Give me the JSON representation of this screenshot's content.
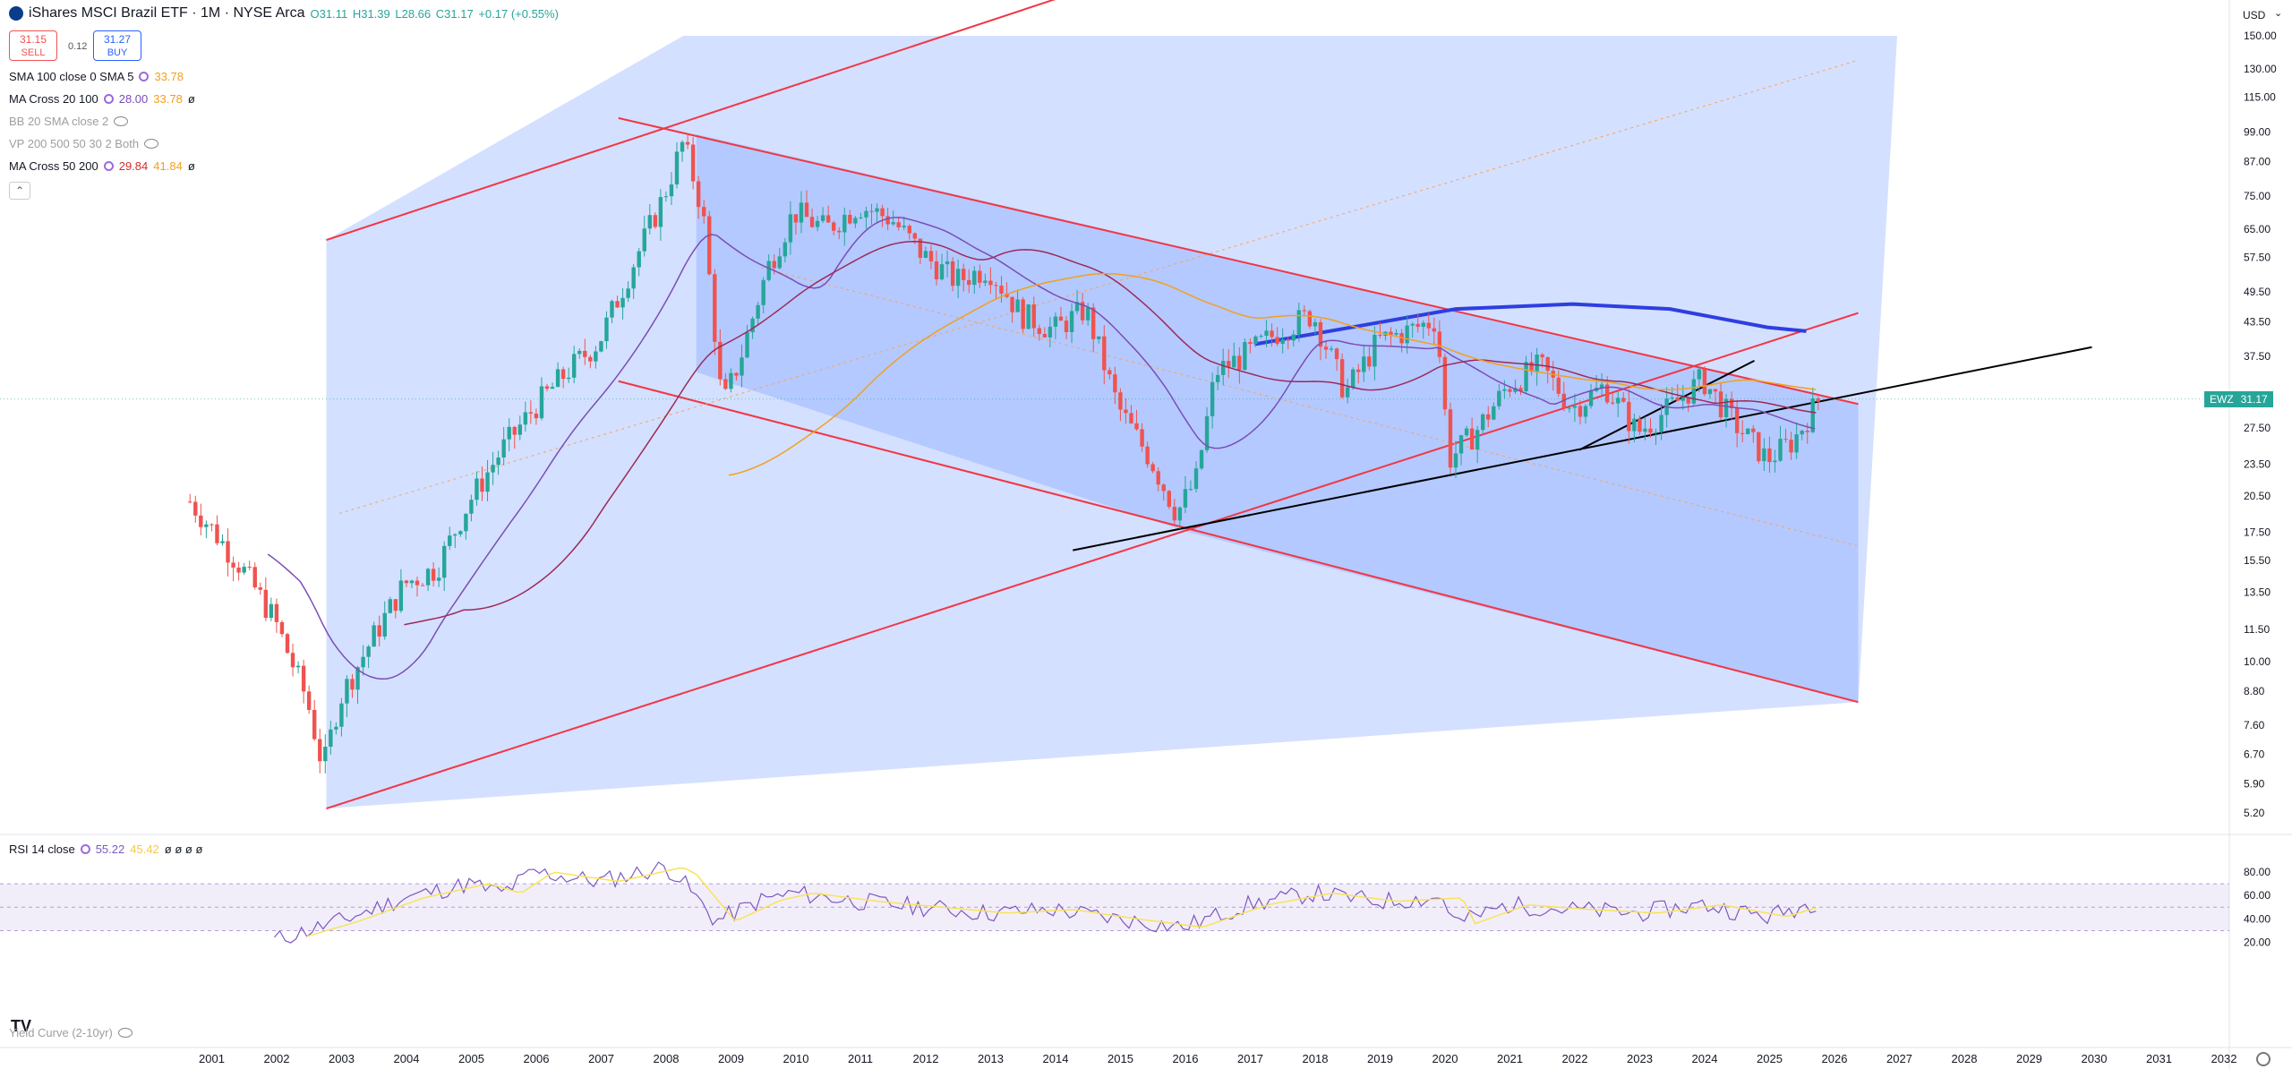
{
  "header": {
    "title": "iShares MSCI Brazil ETF · 1M · NYSE Arca",
    "open": "O31.11",
    "high": "H31.39",
    "low": "L28.66",
    "close": "C31.17",
    "change": "+0.17 (+0.55%)"
  },
  "quote": {
    "sell_price": "31.15",
    "sell_label": "SELL",
    "spread": "0.12",
    "buy_price": "31.27",
    "buy_label": "BUY"
  },
  "indicators": [
    {
      "label": "SMA 100 close 0 SMA 5",
      "v1": "33.78",
      "v2": "",
      "c1": "#f0a020"
    },
    {
      "label": "MA Cross 20 100",
      "v1": "28.00",
      "v2": "33.78",
      "c1": "#7b4db5",
      "extra": "ø"
    },
    {
      "label": "BB 20 SMA close 2",
      "v1": "",
      "v2": "",
      "muted": true
    },
    {
      "label": "VP 200 500 50 30 2 Both",
      "v1": "",
      "v2": "",
      "muted": true
    },
    {
      "label": "MA Cross 50 200",
      "v1": "29.84",
      "v2": "41.84",
      "c1": "#d32f2f",
      "extra": "ø"
    }
  ],
  "rsi_legend": {
    "label": "RSI 14 close",
    "v1": "55.22",
    "v2": "45.42",
    "extra": "ø ø ø ø"
  },
  "yield_label": "Yield Curve (2-10yr)",
  "currency": "USD",
  "ticker_tag": {
    "symbol": "EWZ",
    "price": "31.17"
  },
  "colors": {
    "up": "#26a69a",
    "down": "#ef5350",
    "channel": "#2962ff",
    "channel_line": "#f23645",
    "sma": "#f0a020",
    "ma20": "#7b4db5",
    "ma50": "#9c2a5a",
    "ma200": "#2e3ee0",
    "rsi": "#7e57c2",
    "rsi_ma": "#f7e35a"
  },
  "chart_data": {
    "type": "line",
    "title": "iShares MSCI Brazil ETF · 1M · NYSE Arca",
    "y_scale": "log",
    "price_ticks": [
      "150.00",
      "130.00",
      "115.00",
      "99.00",
      "87.00",
      "75.00",
      "65.00",
      "57.50",
      "49.50",
      "43.50",
      "37.50",
      "31.17",
      "27.50",
      "23.50",
      "20.50",
      "17.50",
      "15.50",
      "13.50",
      "11.50",
      "10.00",
      "8.80",
      "7.60",
      "6.70",
      "5.90",
      "5.20"
    ],
    "rsi_ticks": [
      "80.00",
      "60.00",
      "40.00",
      "20.00"
    ],
    "x_ticks": [
      "2001",
      "2002",
      "2003",
      "2004",
      "2005",
      "2006",
      "2007",
      "2008",
      "2009",
      "2010",
      "2011",
      "2012",
      "2013",
      "2014",
      "2015",
      "2016",
      "2017",
      "2018",
      "2019",
      "2020",
      "2021",
      "2022",
      "2023",
      "2024",
      "2025",
      "2026",
      "2027",
      "2028",
      "2029",
      "2030",
      "2031",
      "2032"
    ],
    "series": [
      {
        "name": "EWZ",
        "x": [
          2000.7,
          2001.0,
          2001.5,
          2002.0,
          2002.5,
          2002.75,
          2003.0,
          2003.5,
          2004.0,
          2004.5,
          2005.0,
          2005.5,
          2006.0,
          2006.5,
          2007.0,
          2007.5,
          2008.0,
          2008.3,
          2008.6,
          2008.9,
          2009.2,
          2009.6,
          2010.0,
          2010.5,
          2011.0,
          2011.5,
          2012.0,
          2012.5,
          2013.0,
          2013.5,
          2014.0,
          2014.5,
          2015.0,
          2015.5,
          2015.9,
          2016.2,
          2016.5,
          2017.0,
          2017.5,
          2018.0,
          2018.5,
          2019.0,
          2019.5,
          2019.9,
          2020.1,
          2020.5,
          2021.0,
          2021.5,
          2022.0,
          2022.5,
          2023.0,
          2023.5,
          2024.0,
          2024.5,
          2025.0,
          2025.4,
          2025.8
        ],
        "values": [
          20,
          18,
          15,
          12,
          8.5,
          6.3,
          8.5,
          11,
          14,
          15,
          20,
          25,
          30,
          35,
          40,
          55,
          75,
          95,
          70,
          30,
          38,
          55,
          70,
          65,
          72,
          68,
          58,
          52,
          55,
          45,
          42,
          46,
          30,
          24,
          19,
          22,
          35,
          38,
          42,
          45,
          32,
          40,
          42,
          44,
          24,
          27,
          33,
          36,
          30,
          33,
          27,
          30,
          34,
          28,
          24,
          26,
          31.17
        ]
      },
      {
        "name": "RSI 14",
        "x": [
          2002.0,
          2003.0,
          2004.0,
          2005.0,
          2005.5,
          2006.0,
          2007.0,
          2008.0,
          2008.2,
          2008.8,
          2009.5,
          2010.0,
          2011.0,
          2012.0,
          2013.0,
          2014.0,
          2015.0,
          2016.0,
          2017.0,
          2018.0,
          2019.0,
          2020.0,
          2020.2,
          2021.0,
          2022.0,
          2023.0,
          2024.0,
          2025.0,
          2025.8
        ],
        "values": [
          22,
          38,
          58,
          70,
          62,
          80,
          72,
          84,
          78,
          38,
          56,
          62,
          55,
          50,
          45,
          48,
          40,
          33,
          52,
          62,
          55,
          58,
          36,
          52,
          48,
          45,
          52,
          42,
          55.22
        ]
      }
    ]
  }
}
